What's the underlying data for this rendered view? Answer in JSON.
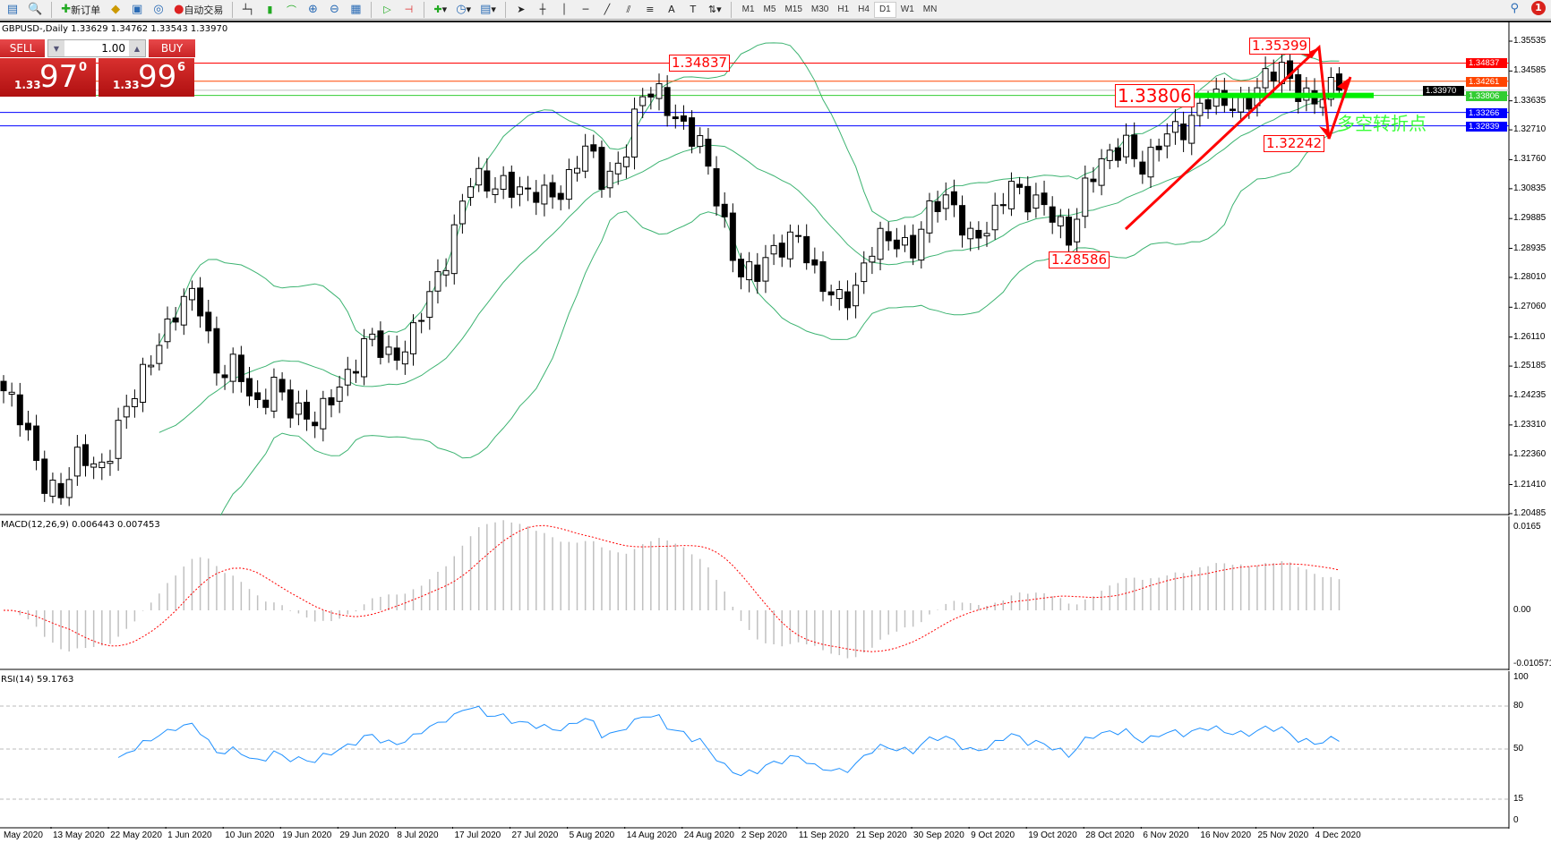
{
  "toolbar": {
    "new_order": "新订单",
    "auto_trading": "自动交易",
    "timeframes": [
      "M1",
      "M5",
      "M15",
      "M30",
      "H1",
      "H4",
      "D1",
      "W1",
      "MN"
    ],
    "active_timeframe": "D1",
    "notification_count": "1"
  },
  "chart": {
    "title": "GBPUSD-,Daily  1.33629 1.34762 1.33543 1.33970",
    "trade_panel": {
      "sell": "SELL",
      "buy": "BUY",
      "lot": "1.00",
      "sell_price_small": "1.33",
      "sell_price_big": "97",
      "sell_price_sup": "0",
      "buy_price_small": "1.33",
      "buy_price_big": "99",
      "buy_price_sup": "6"
    },
    "price_axis": [
      "1.35535",
      "1.34585",
      "1.33635",
      "1.32710",
      "1.31760",
      "1.30835",
      "1.29885",
      "1.28935",
      "1.28010",
      "1.27060",
      "1.26110",
      "1.25185",
      "1.24235",
      "1.23310",
      "1.22360",
      "1.21410",
      "1.20485"
    ],
    "hlines": [
      {
        "price": "1.34837",
        "color": "#ff0000"
      },
      {
        "price": "1.34261",
        "color": "#ff4500"
      },
      {
        "price": "1.33970",
        "color": "#c0c0c0",
        "label_color": "#000000"
      },
      {
        "price": "1.33806",
        "color": "#32cd32"
      },
      {
        "price": "1.33266",
        "color": "#0000ff"
      },
      {
        "price": "1.32839",
        "color": "#0000ff"
      }
    ],
    "annotations": {
      "high_aug": "1.34837",
      "high_dec": "1.35399",
      "level": "1.33806",
      "low_dec": "1.32242",
      "low_oct": "1.28586",
      "turning_point": "多空转折点"
    },
    "macd": {
      "label": "MACD(12,26,9) 0.006443 0.007453",
      "axis": [
        "0.0165",
        "0.00",
        "-0.010571"
      ]
    },
    "rsi": {
      "label": "RSI(14) 59.1763",
      "axis": [
        "100",
        "80",
        "50",
        "15",
        "0"
      ]
    },
    "dates": [
      "May 2020",
      "13 May 2020",
      "22 May 2020",
      "1 Jun 2020",
      "10 Jun 2020",
      "19 Jun 2020",
      "29 Jun 2020",
      "8 Jul 2020",
      "17 Jul 2020",
      "27 Jul 2020",
      "5 Aug 2020",
      "14 Aug 2020",
      "24 Aug 2020",
      "2 Sep 2020",
      "11 Sep 2020",
      "21 Sep 2020",
      "30 Sep 2020",
      "9 Oct 2020",
      "19 Oct 2020",
      "28 Oct 2020",
      "6 Nov 2020",
      "16 Nov 2020",
      "25 Nov 2020",
      "4 Dec 2020"
    ]
  },
  "chart_data": {
    "type": "candlestick",
    "symbol": "GBPUSD-",
    "timeframe": "Daily",
    "ylim": [
      1.20485,
      1.35535
    ],
    "approx_closes": [
      1.244,
      1.233,
      1.217,
      1.211,
      1.223,
      1.22,
      1.233,
      1.245,
      1.261,
      1.27,
      1.274,
      1.252,
      1.252,
      1.236,
      1.249,
      1.236,
      1.233,
      1.245,
      1.249,
      1.261,
      1.256,
      1.258,
      1.274,
      1.29,
      1.31,
      1.309,
      1.312,
      1.305,
      1.306,
      1.31,
      1.321,
      1.31,
      1.32,
      1.337,
      1.338,
      1.33,
      1.321,
      1.302,
      1.283,
      1.28,
      1.29,
      1.296,
      1.277,
      1.274,
      1.277,
      1.29,
      1.293,
      1.29,
      1.302,
      1.305,
      1.293,
      1.294,
      1.312,
      1.305,
      1.3,
      1.293,
      1.312,
      1.316,
      1.324,
      1.315,
      1.324,
      1.329,
      1.337,
      1.334,
      1.336,
      1.343,
      1.345,
      1.34,
      1.337,
      1.3397
    ],
    "indicators": [
      "Bollinger Bands(20,2)",
      "MACD(12,26,9)",
      "RSI(14)"
    ]
  }
}
